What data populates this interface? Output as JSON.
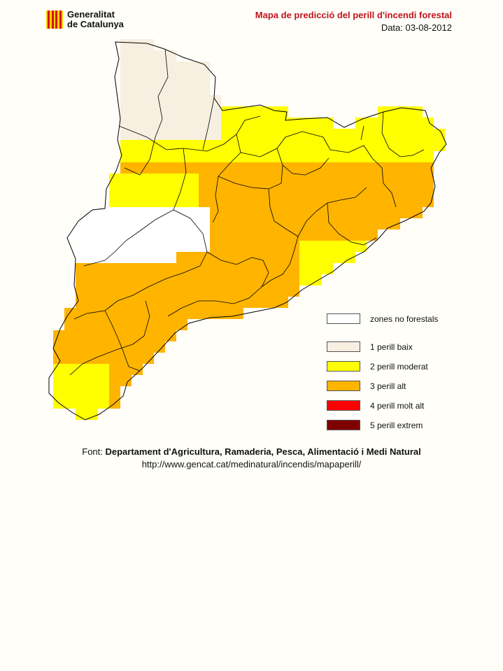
{
  "header": {
    "logo_line1": "Generalitat",
    "logo_line2": "de Catalunya",
    "title": "Mapa de predicció del perill d'incendi forestal",
    "date": "Data: 03-08-2012"
  },
  "legend": [
    {
      "label": "zones no forestals",
      "color": "#ffffff"
    },
    {
      "label": "1  perill baix",
      "color": "#f7efe0"
    },
    {
      "label": "2  perill moderat",
      "color": "#ffff00"
    },
    {
      "label": "3  perill alt",
      "color": "#ffb400"
    },
    {
      "label": "4  perill molt alt",
      "color": "#ff0000"
    },
    {
      "label": "5  perill extrem",
      "color": "#800000"
    }
  ],
  "footer": {
    "source_prefix": "Font: ",
    "source_name": "Departament d'Agricultura, Ramaderia, Pesca, Alimentació i Medi Natural",
    "url": "http://www.gencat.cat/medinatural/incendis/mapaperill/"
  }
}
